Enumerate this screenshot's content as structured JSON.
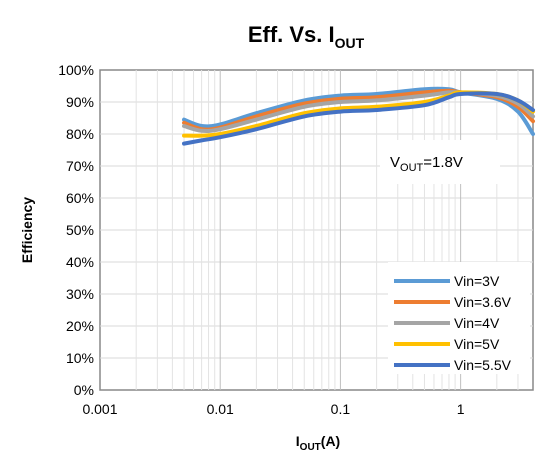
{
  "chart_data": {
    "type": "line",
    "title": {
      "main": "Eff. Vs. I",
      "sub": "OUT"
    },
    "xlabel": {
      "main": "I",
      "sub": "OUT",
      "tail": "(A)"
    },
    "ylabel": "Efficiency",
    "x_scale": "log",
    "xlim": [
      0.001,
      4
    ],
    "ylim": [
      0,
      100
    ],
    "x_ticks": [
      {
        "value": 0.001,
        "label": "0.001"
      },
      {
        "value": 0.01,
        "label": "0.01"
      },
      {
        "value": 0.1,
        "label": "0.1"
      },
      {
        "value": 1,
        "label": "1"
      }
    ],
    "y_ticks": [
      {
        "value": 0,
        "label": "0%"
      },
      {
        "value": 10,
        "label": "10%"
      },
      {
        "value": 20,
        "label": "20%"
      },
      {
        "value": 30,
        "label": "30%"
      },
      {
        "value": 40,
        "label": "40%"
      },
      {
        "value": 50,
        "label": "50%"
      },
      {
        "value": 60,
        "label": "60%"
      },
      {
        "value": 70,
        "label": "70%"
      },
      {
        "value": 80,
        "label": "80%"
      },
      {
        "value": 90,
        "label": "90%"
      },
      {
        "value": 100,
        "label": "100%"
      }
    ],
    "grid": true,
    "legend_position": "bottom-right",
    "annotation": {
      "main": "V",
      "sub": "OUT",
      "tail": "=1.8V"
    },
    "series": [
      {
        "name": "Vin=3V",
        "color": "#5B9BD5",
        "x": [
          0.005,
          0.007,
          0.01,
          0.02,
          0.05,
          0.1,
          0.2,
          0.5,
          0.8,
          1,
          2,
          3,
          4
        ],
        "y": [
          84.5,
          82.5,
          83,
          86.5,
          90.5,
          92,
          92.5,
          94,
          94,
          93,
          91,
          87,
          80
        ]
      },
      {
        "name": "Vin=3.6V",
        "color": "#ED7D31",
        "x": [
          0.005,
          0.007,
          0.01,
          0.02,
          0.05,
          0.1,
          0.2,
          0.5,
          0.8,
          1,
          2,
          3,
          4
        ],
        "y": [
          83.5,
          81.5,
          82,
          85.5,
          89.5,
          91,
          91.5,
          93,
          93.5,
          93,
          91.5,
          88.5,
          84
        ]
      },
      {
        "name": "Vin=4V",
        "color": "#A5A5A5",
        "x": [
          0.005,
          0.007,
          0.01,
          0.02,
          0.05,
          0.1,
          0.2,
          0.5,
          0.8,
          1,
          2,
          3,
          4
        ],
        "y": [
          82.5,
          81,
          81.5,
          84.5,
          88.5,
          90,
          90.5,
          92,
          93,
          93,
          92,
          89.5,
          85.5
        ]
      },
      {
        "name": "Vin=5V",
        "color": "#FFC000",
        "x": [
          0.005,
          0.007,
          0.01,
          0.02,
          0.05,
          0.1,
          0.2,
          0.5,
          0.8,
          1,
          2,
          3,
          4
        ],
        "y": [
          79.5,
          79.5,
          80,
          82.5,
          86.5,
          88,
          88.5,
          90,
          92,
          93,
          92.5,
          90.5,
          87
        ]
      },
      {
        "name": "Vin=5.5V",
        "color": "#4472C4",
        "x": [
          0.005,
          0.007,
          0.01,
          0.02,
          0.05,
          0.1,
          0.2,
          0.5,
          0.8,
          1,
          2,
          3,
          4
        ],
        "y": [
          77,
          78,
          79,
          81.5,
          85.5,
          87,
          87.5,
          89,
          91.5,
          92.5,
          92.5,
          90.5,
          87.5
        ]
      }
    ]
  }
}
